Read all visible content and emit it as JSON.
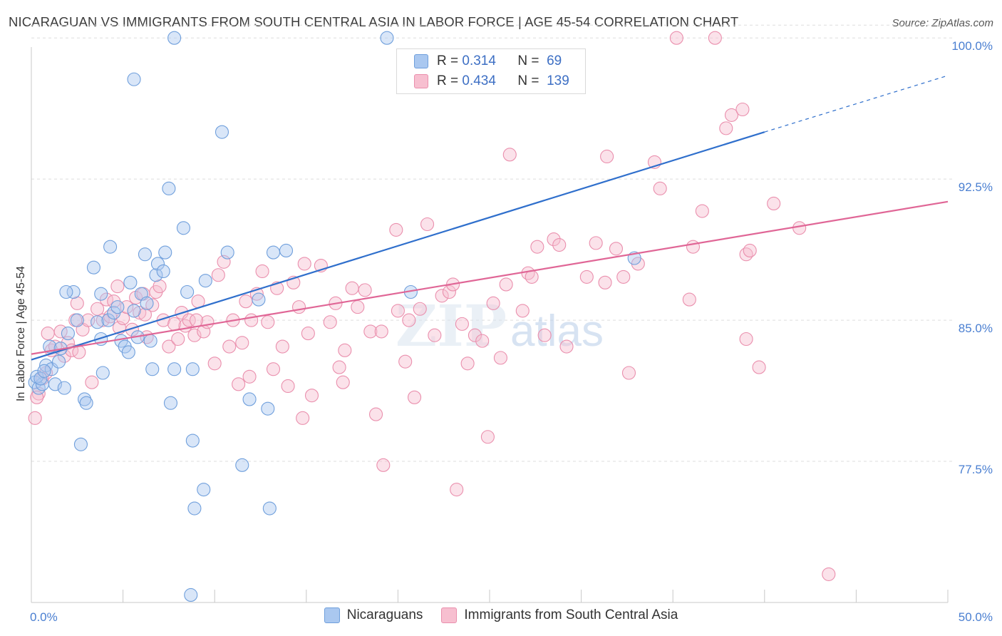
{
  "header": {
    "title": "NICARAGUAN VS IMMIGRANTS FROM SOUTH CENTRAL ASIA IN LABOR FORCE | AGE 45-54 CORRELATION CHART",
    "source": "Source: ZipAtlas.com"
  },
  "legend_top": {
    "rows": [
      {
        "r_label": "R =",
        "r_value": "0.314",
        "n_label": "N =",
        "n_value": "69"
      },
      {
        "r_label": "R =",
        "r_value": "0.434",
        "n_label": "N =",
        "n_value": "139"
      }
    ]
  },
  "legend_bottom": {
    "items": [
      "Nicaraguans",
      "Immigrants from South Central Asia"
    ]
  },
  "watermark": {
    "part1": "ZIP",
    "part2": "atlas"
  },
  "colors": {
    "blue_fill": "#aac8f0",
    "blue_stroke": "#6f9fdc",
    "blue_line": "#2f6fcc",
    "pink_fill": "#f7bfd0",
    "pink_stroke": "#ea8fad",
    "pink_line": "#e06696",
    "tick_text": "#4a7fd1",
    "grid": "#dddddd"
  },
  "chart_data": {
    "type": "scatter",
    "title": "NICARAGUAN VS IMMIGRANTS FROM SOUTH CENTRAL ASIA IN LABOR FORCE | AGE 45-54 CORRELATION CHART",
    "xlabel": "",
    "ylabel": "In Labor Force | Age 45-54",
    "xlim": [
      0,
      50
    ],
    "ylim": [
      70.0,
      100.5
    ],
    "x_tick_labels": [
      "0.0%",
      "50.0%"
    ],
    "y_ticks": [
      77.5,
      85.0,
      92.5,
      100.0
    ],
    "y_tick_labels": [
      "77.5%",
      "85.0%",
      "92.5%",
      "100.0%"
    ],
    "grid": true,
    "legend_position": "top-center",
    "series": [
      {
        "name": "Nicaraguans",
        "color": "#6f9fdc",
        "R": 0.314,
        "N": 69,
        "trend": {
          "x0": 0.0,
          "y0": 82.9,
          "x1": 40.0,
          "y1": 95.0,
          "dashed_to_x": 50.0,
          "dashed_to_y": 98.0
        },
        "points": [
          [
            0.2,
            81.7
          ],
          [
            0.4,
            81.4
          ],
          [
            0.6,
            81.6
          ],
          [
            0.8,
            82.6
          ],
          [
            1.0,
            83.6
          ],
          [
            1.1,
            82.4
          ],
          [
            1.3,
            81.6
          ],
          [
            1.5,
            82.8
          ],
          [
            1.6,
            83.5
          ],
          [
            1.8,
            81.4
          ],
          [
            2.0,
            84.3
          ],
          [
            2.3,
            86.5
          ],
          [
            2.5,
            85.0
          ],
          [
            2.7,
            78.4
          ],
          [
            2.9,
            80.8
          ],
          [
            3.0,
            80.6
          ],
          [
            3.4,
            87.8
          ],
          [
            3.6,
            84.9
          ],
          [
            3.8,
            86.4
          ],
          [
            3.9,
            82.2
          ],
          [
            4.2,
            85.0
          ],
          [
            4.3,
            88.9
          ],
          [
            4.5,
            85.4
          ],
          [
            4.7,
            85.7
          ],
          [
            4.9,
            83.9
          ],
          [
            5.1,
            83.6
          ],
          [
            5.3,
            83.3
          ],
          [
            5.4,
            87.0
          ],
          [
            5.6,
            97.8
          ],
          [
            5.8,
            84.1
          ],
          [
            6.0,
            86.4
          ],
          [
            6.2,
            88.5
          ],
          [
            6.3,
            85.9
          ],
          [
            6.5,
            83.9
          ],
          [
            6.6,
            82.4
          ],
          [
            6.8,
            87.4
          ],
          [
            6.9,
            88.0
          ],
          [
            7.2,
            87.6
          ],
          [
            7.3,
            88.6
          ],
          [
            7.5,
            92.0
          ],
          [
            7.6,
            80.6
          ],
          [
            7.8,
            82.4
          ],
          [
            7.8,
            100.0
          ],
          [
            8.3,
            89.9
          ],
          [
            8.5,
            86.5
          ],
          [
            8.8,
            82.4
          ],
          [
            8.8,
            78.6
          ],
          [
            8.7,
            70.4
          ],
          [
            8.9,
            75.0
          ],
          [
            9.4,
            76.0
          ],
          [
            9.5,
            87.1
          ],
          [
            10.4,
            95.0
          ],
          [
            10.7,
            88.6
          ],
          [
            11.5,
            77.3
          ],
          [
            11.9,
            80.8
          ],
          [
            12.4,
            86.1
          ],
          [
            12.9,
            80.3
          ],
          [
            13.0,
            75.0
          ],
          [
            13.2,
            88.6
          ],
          [
            13.9,
            88.7
          ],
          [
            19.4,
            100.0
          ],
          [
            20.7,
            86.5
          ],
          [
            32.9,
            88.3
          ],
          [
            0.3,
            82.0
          ],
          [
            0.5,
            81.9
          ],
          [
            0.7,
            82.3
          ],
          [
            1.9,
            86.5
          ],
          [
            3.8,
            84.0
          ],
          [
            5.6,
            85.5
          ]
        ]
      },
      {
        "name": "Immigrants from South Central Asia",
        "color": "#ea8fad",
        "R": 0.434,
        "N": 139,
        "trend": {
          "x0": 0.0,
          "y0": 83.2,
          "x1": 50.0,
          "y1": 91.3
        },
        "points": [
          [
            0.2,
            79.8
          ],
          [
            0.4,
            81.1
          ],
          [
            0.6,
            81.9
          ],
          [
            0.8,
            82.2
          ],
          [
            1.1,
            83.4
          ],
          [
            1.3,
            83.6
          ],
          [
            1.6,
            84.4
          ],
          [
            1.8,
            83.1
          ],
          [
            2.0,
            83.8
          ],
          [
            2.2,
            83.4
          ],
          [
            2.4,
            85.0
          ],
          [
            2.6,
            83.3
          ],
          [
            2.8,
            84.5
          ],
          [
            3.1,
            85.0
          ],
          [
            3.3,
            81.7
          ],
          [
            3.6,
            85.6
          ],
          [
            3.9,
            85.0
          ],
          [
            4.1,
            86.1
          ],
          [
            4.3,
            85.2
          ],
          [
            4.5,
            86.0
          ],
          [
            4.8,
            84.6
          ],
          [
            5.0,
            85.1
          ],
          [
            5.2,
            85.7
          ],
          [
            5.5,
            84.5
          ],
          [
            5.7,
            86.2
          ],
          [
            5.9,
            85.4
          ],
          [
            6.1,
            86.4
          ],
          [
            6.3,
            84.1
          ],
          [
            6.6,
            85.8
          ],
          [
            6.8,
            86.5
          ],
          [
            7.0,
            86.8
          ],
          [
            7.2,
            85.0
          ],
          [
            7.5,
            83.6
          ],
          [
            7.8,
            84.8
          ],
          [
            8.0,
            84.0
          ],
          [
            8.2,
            85.4
          ],
          [
            8.4,
            84.7
          ],
          [
            8.6,
            85.0
          ],
          [
            8.9,
            84.2
          ],
          [
            9.1,
            86.0
          ],
          [
            9.4,
            84.4
          ],
          [
            9.6,
            84.9
          ],
          [
            10.0,
            82.7
          ],
          [
            10.2,
            87.4
          ],
          [
            10.5,
            88.1
          ],
          [
            10.8,
            83.6
          ],
          [
            11.0,
            85.0
          ],
          [
            11.3,
            81.6
          ],
          [
            11.5,
            83.8
          ],
          [
            11.7,
            86.0
          ],
          [
            12.0,
            85.0
          ],
          [
            12.3,
            86.4
          ],
          [
            12.6,
            87.6
          ],
          [
            12.9,
            84.9
          ],
          [
            13.2,
            82.4
          ],
          [
            13.4,
            86.7
          ],
          [
            13.7,
            83.6
          ],
          [
            14.0,
            81.5
          ],
          [
            14.3,
            87.0
          ],
          [
            14.6,
            85.7
          ],
          [
            14.8,
            79.8
          ],
          [
            15.1,
            84.3
          ],
          [
            15.3,
            81.0
          ],
          [
            15.8,
            87.9
          ],
          [
            16.3,
            84.9
          ],
          [
            16.6,
            85.9
          ],
          [
            16.8,
            82.5
          ],
          [
            17.0,
            81.7
          ],
          [
            17.1,
            83.4
          ],
          [
            17.5,
            86.7
          ],
          [
            17.8,
            85.7
          ],
          [
            18.2,
            86.6
          ],
          [
            18.5,
            84.4
          ],
          [
            18.8,
            80.0
          ],
          [
            19.1,
            84.4
          ],
          [
            19.2,
            77.3
          ],
          [
            19.9,
            89.8
          ],
          [
            20.0,
            85.5
          ],
          [
            20.4,
            82.8
          ],
          [
            20.6,
            85.0
          ],
          [
            20.9,
            80.9
          ],
          [
            21.2,
            85.6
          ],
          [
            21.6,
            90.1
          ],
          [
            22.0,
            84.2
          ],
          [
            22.4,
            86.3
          ],
          [
            22.8,
            86.5
          ],
          [
            23.0,
            86.9
          ],
          [
            23.2,
            76.0
          ],
          [
            23.5,
            84.8
          ],
          [
            23.8,
            82.7
          ],
          [
            24.2,
            84.2
          ],
          [
            24.6,
            83.9
          ],
          [
            24.9,
            78.8
          ],
          [
            25.2,
            85.9
          ],
          [
            25.6,
            83.0
          ],
          [
            25.9,
            86.9
          ],
          [
            26.1,
            93.8
          ],
          [
            26.8,
            85.5
          ],
          [
            27.1,
            87.5
          ],
          [
            27.3,
            87.3
          ],
          [
            27.6,
            88.9
          ],
          [
            28.0,
            84.2
          ],
          [
            28.5,
            89.3
          ],
          [
            28.8,
            89.0
          ],
          [
            29.2,
            83.6
          ],
          [
            30.3,
            87.3
          ],
          [
            30.8,
            89.1
          ],
          [
            31.3,
            87.0
          ],
          [
            31.4,
            93.7
          ],
          [
            31.9,
            88.8
          ],
          [
            32.3,
            87.3
          ],
          [
            32.6,
            82.2
          ],
          [
            33.1,
            88.0
          ],
          [
            34.0,
            93.4
          ],
          [
            34.3,
            92.0
          ],
          [
            35.2,
            100.0
          ],
          [
            35.9,
            86.1
          ],
          [
            36.1,
            88.9
          ],
          [
            36.6,
            90.8
          ],
          [
            37.3,
            100.0
          ],
          [
            37.9,
            95.2
          ],
          [
            38.2,
            95.9
          ],
          [
            38.8,
            96.2
          ],
          [
            39.0,
            88.5
          ],
          [
            39.2,
            88.7
          ],
          [
            39.0,
            84.0
          ],
          [
            39.7,
            82.5
          ],
          [
            40.5,
            91.2
          ],
          [
            41.9,
            89.9
          ],
          [
            43.5,
            71.5
          ],
          [
            0.3,
            80.9
          ],
          [
            0.9,
            84.3
          ],
          [
            2.5,
            85.9
          ],
          [
            4.7,
            86.8
          ],
          [
            6.2,
            85.3
          ],
          [
            9.0,
            85.0
          ],
          [
            11.9,
            82.0
          ],
          [
            14.9,
            88.0
          ]
        ]
      }
    ]
  }
}
